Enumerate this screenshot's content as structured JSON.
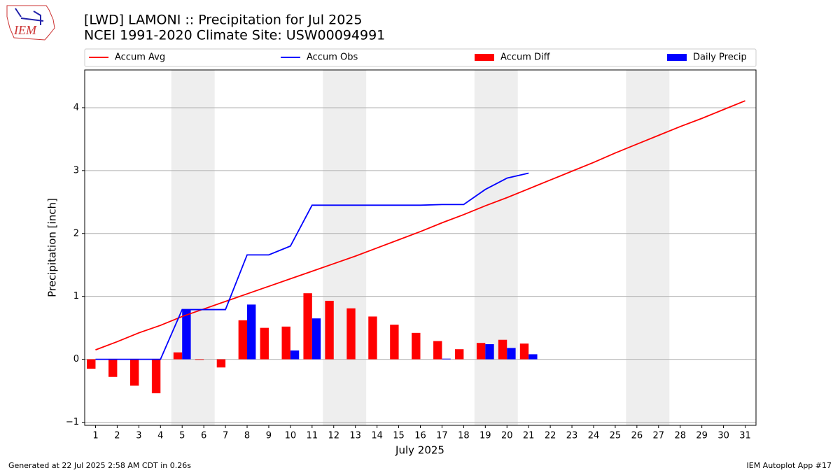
{
  "logo_text": "IEM",
  "footer_left": "Generated at 22 Jul 2025 2:58 AM CDT in 0.26s",
  "footer_right": "IEM Autoplot App #17",
  "chart_data": {
    "type": "bar_line",
    "title": "[LWD] LAMONI :: Precipitation for Jul 2025",
    "subtitle": "NCEI 1991-2020 Climate Site: USW00094991",
    "x_label": "July 2025",
    "y_label": "Precipitation [inch]",
    "x": [
      1,
      2,
      3,
      4,
      5,
      6,
      7,
      8,
      9,
      10,
      11,
      12,
      13,
      14,
      15,
      16,
      17,
      18,
      19,
      20,
      21,
      22,
      23,
      24,
      25,
      26,
      27,
      28,
      29,
      30,
      31
    ],
    "xlim": [
      0.5,
      31.5
    ],
    "ylim": [
      -1.05,
      4.6
    ],
    "yticks": [
      {
        "value": -1,
        "label": "−1"
      },
      0,
      1,
      2,
      3,
      4
    ],
    "grid": true,
    "shaded_spans": [
      [
        4.5,
        6.5
      ],
      [
        11.5,
        13.5
      ],
      [
        18.5,
        20.5
      ],
      [
        25.5,
        27.5
      ]
    ],
    "shade_color": "#eeeeee",
    "series": [
      {
        "name": "Accum Avg",
        "kind": "line",
        "color": "#ff0000",
        "values": [
          0.15,
          0.28,
          0.42,
          0.54,
          0.68,
          0.8,
          0.92,
          1.04,
          1.16,
          1.28,
          1.4,
          1.52,
          1.64,
          1.77,
          1.9,
          2.03,
          2.17,
          2.3,
          2.44,
          2.57,
          2.71,
          2.85,
          2.99,
          3.13,
          3.28,
          3.42,
          3.56,
          3.7,
          3.83,
          3.97,
          4.11
        ]
      },
      {
        "name": "Accum Obs",
        "kind": "line",
        "color": "#0000ff",
        "values": [
          0,
          0,
          0,
          0,
          0.79,
          0.79,
          0.79,
          1.66,
          1.66,
          1.8,
          2.45,
          2.45,
          2.45,
          2.45,
          2.45,
          2.45,
          2.46,
          2.46,
          2.7,
          2.88,
          2.96,
          null,
          null,
          null,
          null,
          null,
          null,
          null,
          null,
          null,
          null
        ]
      },
      {
        "name": "Accum Diff",
        "kind": "bar",
        "color": "#ff0000",
        "values": [
          -0.15,
          -0.28,
          -0.42,
          -0.54,
          0.11,
          -0.01,
          -0.13,
          0.62,
          0.5,
          0.52,
          1.05,
          0.93,
          0.81,
          0.68,
          0.55,
          0.42,
          0.29,
          0.16,
          0.26,
          0.31,
          0.25,
          null,
          null,
          null,
          null,
          null,
          null,
          null,
          null,
          null,
          null
        ]
      },
      {
        "name": "Daily Precip",
        "kind": "bar",
        "color": "#0000ff",
        "values": [
          0,
          0,
          0,
          0,
          0.79,
          0,
          0,
          0.87,
          0,
          0.14,
          0.65,
          0,
          0,
          0,
          0,
          0,
          0.01,
          0,
          0.24,
          0.18,
          0.08,
          null,
          null,
          null,
          null,
          null,
          null,
          null,
          null,
          null,
          null
        ]
      }
    ]
  }
}
